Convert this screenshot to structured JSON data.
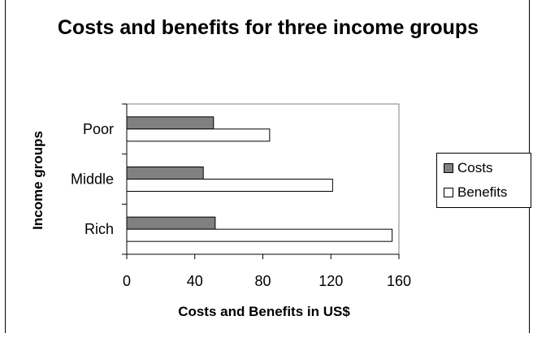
{
  "chart_data": {
    "type": "bar",
    "orientation": "horizontal",
    "title": "Costs and benefits for three income groups",
    "xlabel": "Costs and Benefits in US$",
    "ylabel": "Income groups",
    "categories": [
      "Poor",
      "Middle",
      "Rich"
    ],
    "series": [
      {
        "name": "Costs",
        "values": [
          51,
          45,
          52
        ],
        "color": "#808080"
      },
      {
        "name": "Benefits",
        "values": [
          84,
          121,
          156
        ],
        "color": "#ffffff"
      }
    ],
    "xlim": [
      0,
      160
    ],
    "xticks": [
      "0",
      "40",
      "80",
      "120",
      "160"
    ],
    "grid": false,
    "legend": "right"
  }
}
